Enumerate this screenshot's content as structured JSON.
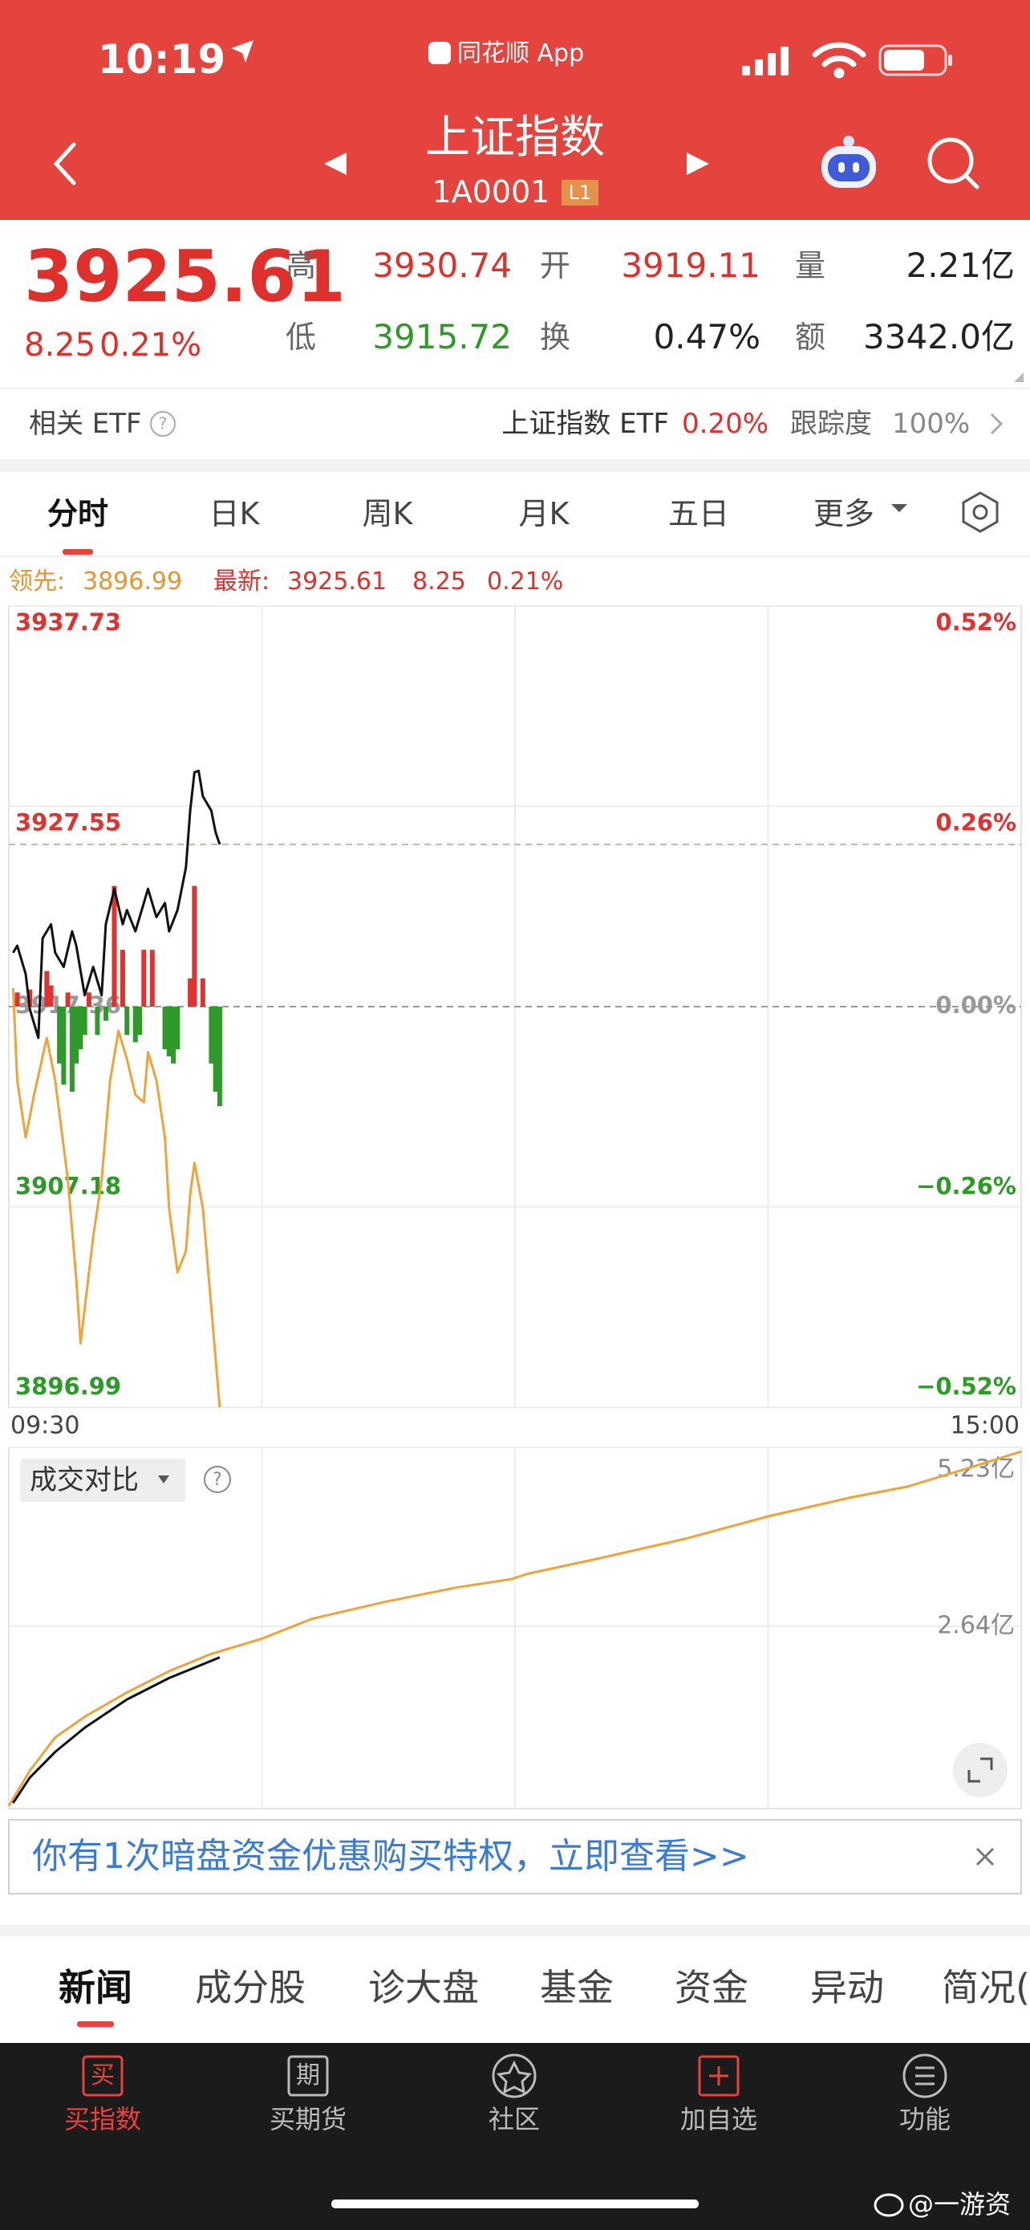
{
  "status_bar": {
    "time": "10:19",
    "app": "同花顺 App"
  },
  "header": {
    "title": "上证指数",
    "code": "1A0001",
    "level": "L1"
  },
  "quote": {
    "price": "3925.61",
    "change": "8.25",
    "change_pct": "0.21%",
    "fields": [
      {
        "label": "高",
        "value": "3930.74"
      },
      {
        "label": "开",
        "value": "3919.11"
      },
      {
        "label": "量",
        "value": "2.21亿"
      },
      {
        "label": "低",
        "value": "3915.72"
      },
      {
        "label": "换",
        "value": "0.47%"
      },
      {
        "label": "额",
        "value": "3342.0亿"
      }
    ]
  },
  "etf": {
    "label": "相关 ETF",
    "name": "上证指数 ETF",
    "pct": "0.20%",
    "tracking_label": "跟踪度",
    "tracking": "100%"
  },
  "tabs": [
    "分时",
    "日K",
    "周K",
    "月K",
    "五日",
    "更多"
  ],
  "info_line": {
    "lead_label": "领先:",
    "lead": 3896.99,
    "latest_label": "最新:",
    "latest": 3925.61,
    "change": 8.25,
    "change_pct": "0.21%"
  },
  "chart_data": [
    {
      "type": "line",
      "xlim": [
        0,
        240
      ],
      "xticks": [
        {
          "value": 0,
          "label": "09:30"
        },
        {
          "value": 240,
          "label": "15:00"
        }
      ],
      "ylim": [
        3896.99,
        3937.73
      ],
      "yticks": [
        3937.73,
        3927.55,
        3917.36,
        3907.18,
        3896.99
      ],
      "y2lim": [
        -0.52,
        0.52
      ],
      "y2ticks": [
        {
          "value": 0.52,
          "label": "0.52%"
        },
        {
          "value": 0.26,
          "label": "0.26%"
        },
        {
          "value": 0,
          "label": "0.00%"
        },
        {
          "value": -0.26,
          "label": "−0.26%"
        },
        {
          "value": -0.52,
          "label": "−0.52%"
        }
      ],
      "grid": true,
      "up_color": "#e0322f",
      "down_color": "#2f9a2a",
      "series": [
        {
          "type": "bar",
          "x": [
            2,
            5,
            9,
            10,
            12,
            13,
            14,
            15,
            16,
            17,
            18,
            19,
            21,
            23,
            25,
            27,
            28,
            30,
            31,
            32,
            34,
            37,
            38,
            39,
            40,
            43,
            44,
            46,
            48,
            49,
            50
          ],
          "values": [
            3918.08,
            3918.23,
            3919.17,
            3918.44,
            3914.47,
            3913.39,
            3918.08,
            3913.03,
            3914.47,
            3915.19,
            3915.92,
            3918.08,
            3915.92,
            3916.64,
            3923.5,
            3920.25,
            3915.92,
            3915.55,
            3915.92,
            3920.25,
            3920.25,
            3915.19,
            3914.83,
            3914.47,
            3915.19,
            3918.8,
            3923.5,
            3918.8,
            3914.47,
            3913.03,
            3912.3
          ]
        },
        {
          "color": "#eea43a",
          "x": [
            1,
            2,
            4,
            6,
            9,
            11,
            14,
            16,
            17,
            20,
            22,
            24,
            26,
            28,
            30,
            32,
            33,
            35,
            37,
            38,
            40,
            42,
            43,
            44,
            46,
            48,
            50
          ],
          "values": [
            3918.3,
            3913.6,
            3910.71,
            3912.88,
            3915.77,
            3913.6,
            3908.55,
            3903.49,
            3900.24,
            3905.66,
            3908.55,
            3913.6,
            3916.13,
            3914.69,
            3912.88,
            3912.5,
            3915.05,
            3913.6,
            3910.71,
            3907.1,
            3903.85,
            3904.94,
            3907.82,
            3909.41,
            3907.1,
            3902.05,
            3896.99
          ]
        },
        {
          "color": "#111111",
          "x": [
            1,
            2,
            4,
            5,
            7,
            8,
            10,
            11,
            13,
            15,
            16,
            18,
            20,
            22,
            23,
            25,
            27,
            28,
            30,
            32,
            33,
            35,
            37,
            38,
            40,
            42,
            43,
            44,
            45,
            46,
            48,
            49,
            50
          ],
          "values": [
            3920.1,
            3920.46,
            3919.02,
            3917.21,
            3915.77,
            3920.83,
            3921.55,
            3920.1,
            3919.38,
            3921.19,
            3920.46,
            3917.94,
            3919.38,
            3917.94,
            3921.55,
            3923.35,
            3921.55,
            3922.27,
            3921.19,
            3922.63,
            3923.35,
            3921.91,
            3922.63,
            3921.19,
            3922.27,
            3924.44,
            3927.33,
            3929.28,
            3929.35,
            3928.05,
            3927.33,
            3926.24,
            3925.61
          ]
        }
      ]
    },
    {
      "type": "line",
      "title": "成交对比",
      "xlim": [
        0,
        240
      ],
      "ylim": [
        0,
        5.23
      ],
      "yticks": [
        {
          "value": 2.64,
          "label": "2.64亿"
        },
        {
          "value": 5.23,
          "label": "5.23亿"
        }
      ],
      "grid": true,
      "series": [
        {
          "color": "#eea43a",
          "x": [
            0,
            5,
            11,
            18,
            28,
            38,
            48,
            60,
            72,
            89,
            106,
            119,
            123,
            139,
            160,
            180,
            200,
            213,
            227,
            240
          ],
          "values": [
            0.04,
            0.55,
            1.03,
            1.33,
            1.68,
            1.99,
            2.24,
            2.46,
            2.75,
            2.99,
            3.2,
            3.32,
            3.4,
            3.61,
            3.9,
            4.23,
            4.51,
            4.66,
            4.92,
            5.17
          ]
        },
        {
          "color": "#111111",
          "x": [
            1,
            5,
            11,
            18,
            28,
            38,
            50
          ],
          "values": [
            0.08,
            0.45,
            0.82,
            1.17,
            1.58,
            1.89,
            2.19
          ]
        }
      ]
    }
  ],
  "banner": "你有1次暗盘资金优惠购买特权，立即查看>>",
  "news_tabs": [
    "新闻",
    "成分股",
    "诊大盘",
    "基金",
    "资金",
    "异动",
    "简况("
  ],
  "bottom_nav": [
    {
      "icon": "买",
      "label": "买指数"
    },
    {
      "icon": "期",
      "label": "买期货"
    },
    {
      "label": "社区"
    },
    {
      "label": "加自选"
    },
    {
      "label": "功能"
    }
  ],
  "watermark": "@一游资"
}
